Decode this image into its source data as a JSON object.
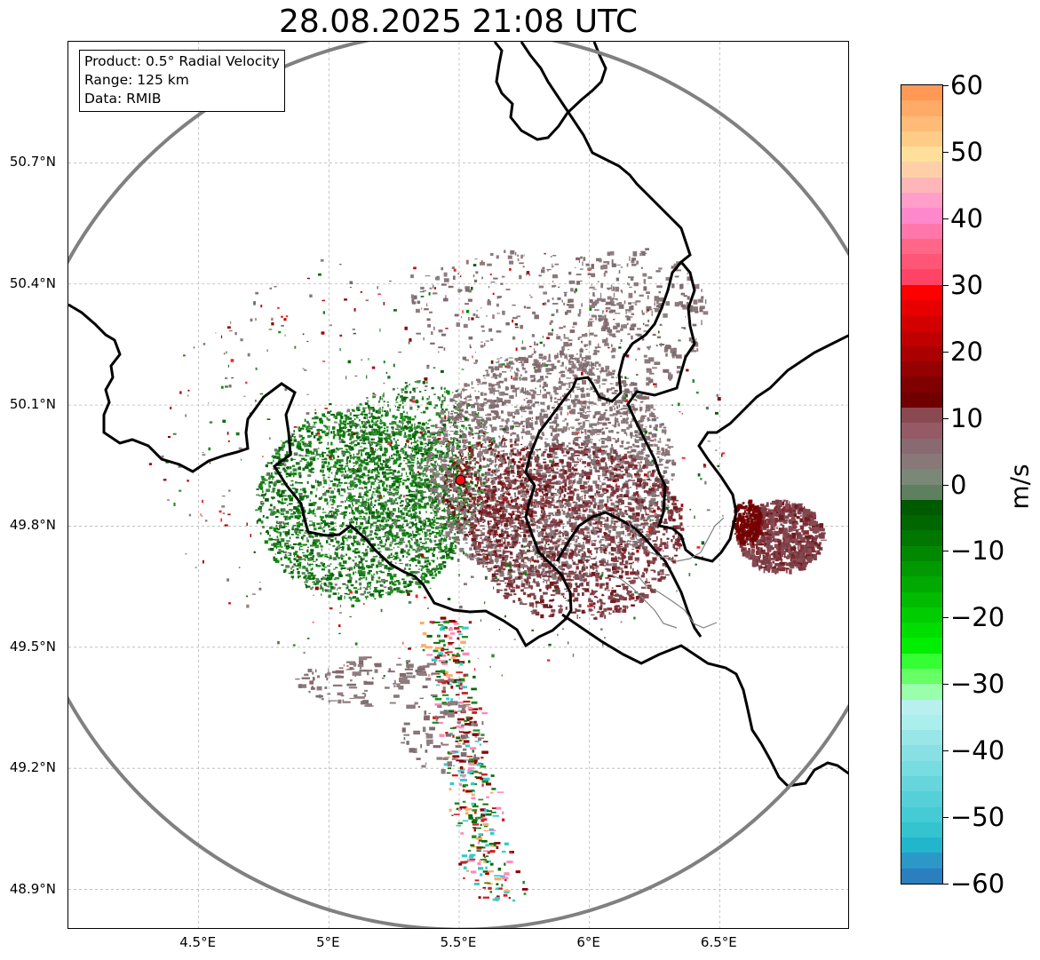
{
  "title": "28.08.2025 21:08 UTC",
  "info_box": {
    "product": "Product: 0.5° Radial Velocity",
    "range": "Range: 125 km",
    "source": "Data: RMIB"
  },
  "map": {
    "lon_range": [
      4.0,
      7.0
    ],
    "lat_range": [
      48.8,
      51.0
    ],
    "latitude_labels": [
      {
        "value": 50.7,
        "label": "50.7°N"
      },
      {
        "value": 50.4,
        "label": "50.4°N"
      },
      {
        "value": 50.1,
        "label": "50.1°N"
      },
      {
        "value": 49.8,
        "label": "49.8°N"
      },
      {
        "value": 49.5,
        "label": "49.5°N"
      },
      {
        "value": 49.2,
        "label": "49.2°N"
      },
      {
        "value": 48.9,
        "label": "48.9°N"
      }
    ],
    "longitude_labels": [
      {
        "value": 4.5,
        "label": "4.5°E"
      },
      {
        "value": 5.0,
        "label": "5°E"
      },
      {
        "value": 5.5,
        "label": "5.5°E"
      },
      {
        "value": 6.0,
        "label": "6°E"
      },
      {
        "value": 6.5,
        "label": "6.5°E"
      }
    ],
    "radar_site": {
      "lon": 5.505,
      "lat": 49.914
    },
    "range_ring_color": "#808080",
    "site_marker_color": "#ee1111",
    "border_color": "#000000",
    "subregion_border_color": "#808080"
  },
  "colorbar": {
    "unit": "m/s",
    "min": -60,
    "max": 60,
    "ticks": [
      "60",
      "50",
      "40",
      "30",
      "20",
      "10",
      "0",
      "−10",
      "−20",
      "−30",
      "−40",
      "−50",
      "−60"
    ],
    "colors_top_to_bottom": [
      "#ff9955",
      "#ffaa66",
      "#ffbb77",
      "#ffcc88",
      "#ffe09a",
      "#ffd0a8",
      "#ffb6b8",
      "#ff9ec8",
      "#ff88cc",
      "#ff77aa",
      "#ff6688",
      "#ff5577",
      "#ff4466",
      "#ff0000",
      "#e80000",
      "#d40000",
      "#c00000",
      "#aa0000",
      "#950000",
      "#800000",
      "#700000",
      "#8a4850",
      "#955a65",
      "#8a6a72",
      "#887878",
      "#7a8878",
      "#5e8060",
      "#005a00",
      "#006600",
      "#007700",
      "#008800",
      "#009900",
      "#00aa00",
      "#00bb00",
      "#00cc00",
      "#00dd00",
      "#00ee00",
      "#33ff33",
      "#66ff66",
      "#99ffaa",
      "#b8f0f0",
      "#aaeeee",
      "#99e6e8",
      "#88e0e4",
      "#77dde0",
      "#66d6dc",
      "#55d0d8",
      "#44cbd4",
      "#33c4d0",
      "#22b6cc",
      "#2b98c8",
      "#2b7fbf"
    ]
  }
}
